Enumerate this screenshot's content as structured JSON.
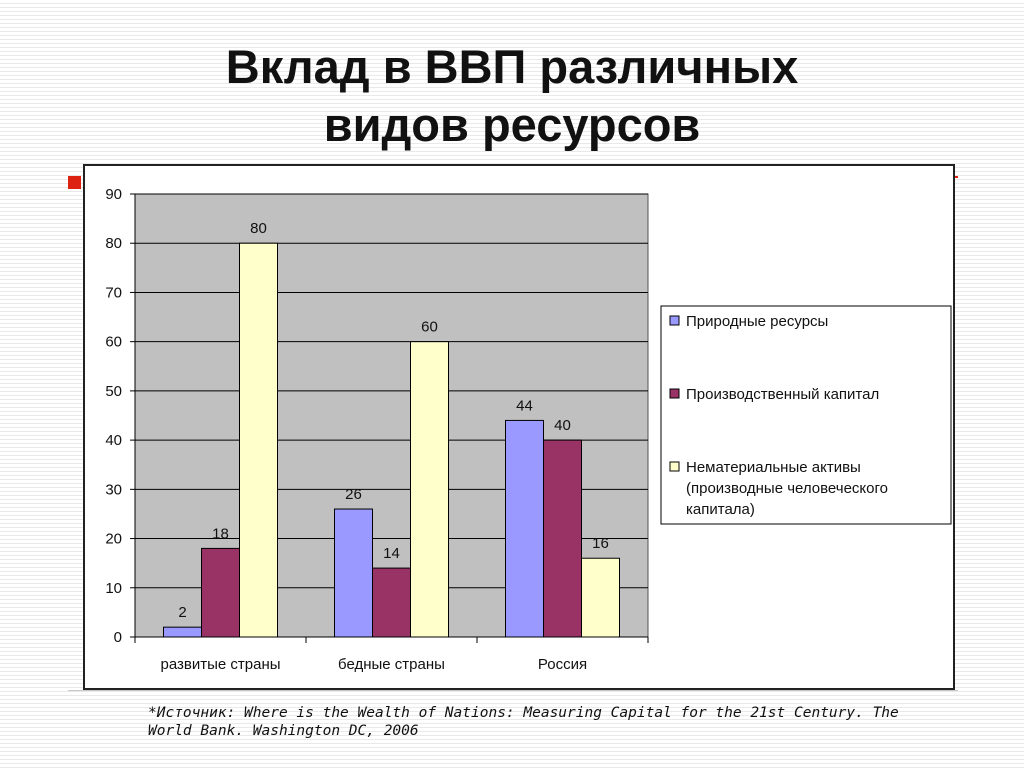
{
  "slide": {
    "title_lines": [
      "Вклад в ВВП различных",
      "видов ресурсов"
    ],
    "source": "*Источник: Where is the Wealth of Nations: Measuring Capital for the 21st Century. The World Bank. Washington DC, 2006",
    "accent_color": "#dd2211"
  },
  "chart_data": {
    "type": "bar",
    "title": "",
    "xlabel": "",
    "ylabel": "",
    "categories": [
      "развитые страны",
      "бедные страны",
      "Россия"
    ],
    "series": [
      {
        "name": "Природные ресурсы",
        "values": [
          2,
          26,
          44
        ],
        "color": "#9999ff"
      },
      {
        "name": "Производственный капитал",
        "values": [
          18,
          14,
          40
        ],
        "color": "#993366"
      },
      {
        "name": "Нематериальные активы (производные человеческого капитала)",
        "legend_lines": [
          "Нематериальные активы",
          "(производные человеческого",
          "капитала)"
        ],
        "values": [
          80,
          60,
          16
        ],
        "color": "#ffffcc"
      }
    ],
    "ylim": [
      0,
      90
    ],
    "yticks": [
      0,
      10,
      20,
      30,
      40,
      50,
      60,
      70,
      80,
      90
    ],
    "grid": true,
    "plot_background": "#c0c0c0",
    "legend_position": "right",
    "data_labels": true
  }
}
